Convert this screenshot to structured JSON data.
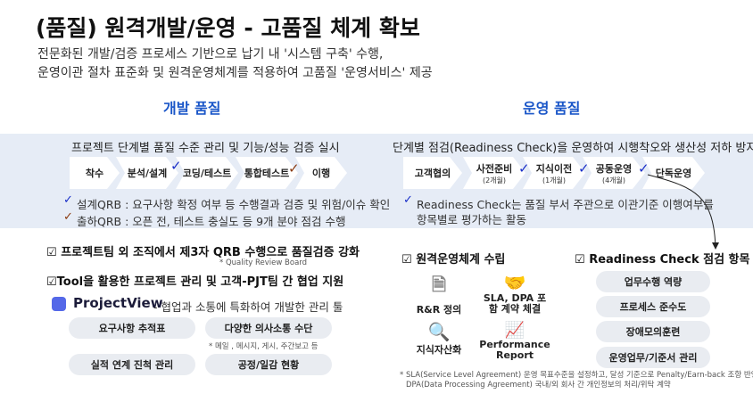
{
  "title": "(품질) 원격개발/운영 - 고품질 체계 확보",
  "subtitle": [
    "전문화된 개발/검증 프로세스 기반으로 납기 내 '시스템 구축' 수행,",
    "운영이관 절차 표준화 및 원격운영체계를 적용하여 고품질 '운영서비스' 제공"
  ],
  "dev": {
    "heading": "개발 품질",
    "band_title": "프로젝트 단계별 품질 수준 관리 및 기능/성능 검증 실시",
    "stages": [
      "착수",
      "분석/설계",
      "코딩/테스트",
      "통합테스트",
      "이행"
    ],
    "bullets": [
      "설계QRB : 요구사항 확정 여부 등 수행결과 검증 및 위험/이슈 확인",
      "출하QRB : 오픈 전, 테스트 충실도 등 9개 분야 점검 수행"
    ],
    "points": [
      "프로젝트팀 외  조직에서 제3자 QRB 수행으로 품질검증 강화",
      "Tool을 활용한 프로젝트 관리 및 고객-PJT팀 간 협업 지원"
    ],
    "qrb_note": "* Quality Review Board",
    "tool_name": "ProjectView",
    "tool_desc": "- 협업과 소통에 특화하여 개발한 관리 툴",
    "features": [
      "요구사항 추적표",
      "다양한 의사소통 수단",
      "실적 연계 진척 관리",
      "공정/일감 현황"
    ],
    "feature_note": "* 메일 , 메시지, 게시, 주간보고 등"
  },
  "ops": {
    "heading": "운영 품질",
    "band_title": "단계별 점검(Readiness Check)을 운영하여 시행착오와 생산성 저하 방지",
    "stages": [
      {
        "label": "고객협의",
        "sub": ""
      },
      {
        "label": "사전준비",
        "sub": "(2개월)"
      },
      {
        "label": "지식이전",
        "sub": "(1개월)"
      },
      {
        "label": "공동운영",
        "sub": "(4개월)"
      },
      {
        "label": "단독운영",
        "sub": ""
      }
    ],
    "bullet": [
      "Readiness Check는 품질 부서 주관으로 이관기준 이행여부를",
      "항목별로 평가하는 활동"
    ],
    "remote_heading": "원격운영체계 수립",
    "remote_items": [
      "R&R 정의",
      "SLA, DPA 포함 계약 체결",
      "지식자산화",
      "Performance Report"
    ],
    "rc_heading": "Readiness Check 점검 항목",
    "rc_items": [
      "업무수행 역량",
      "프로세스 준수도",
      "장애모의훈련",
      "운영업무/기준서 관리"
    ],
    "footnotes": [
      "* SLA(Service Level Agreement) 운영 목표수준을 설정하고, 달성 기준으로 Penalty/Earn-back 조항 반영",
      "DPA(Data Processing Agreement)  국내/외 회사 간 개인정보의 처리/위탁 계약"
    ]
  },
  "colors": {
    "accent": "#1a56c8",
    "band": "#e6ecf6",
    "check_blue": "#1a2fc8",
    "check_brown": "#8a3a10"
  }
}
